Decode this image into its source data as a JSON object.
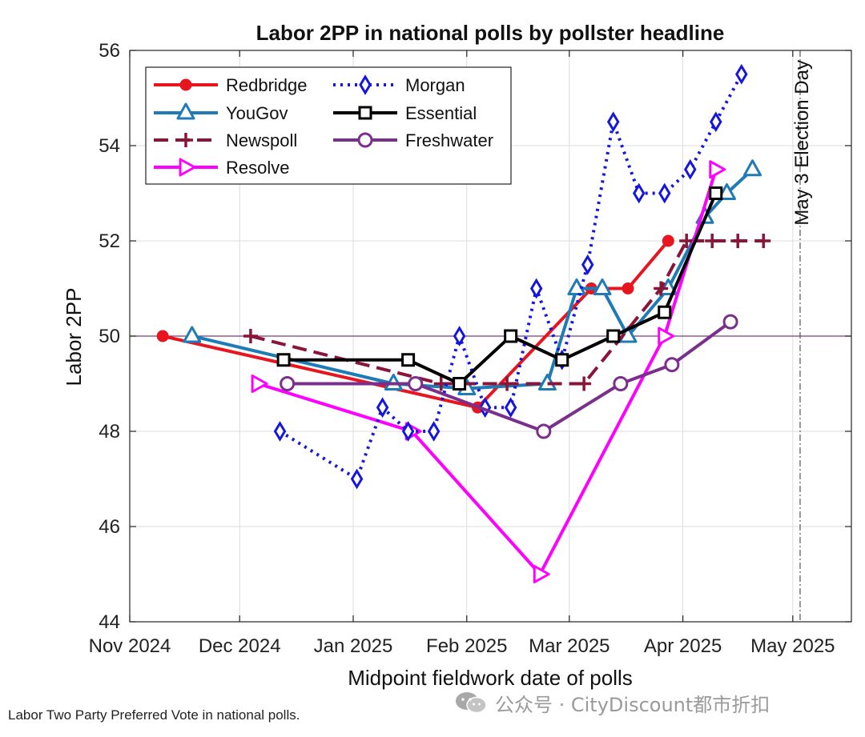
{
  "caption": "Labor Two Party Preferred Vote in national polls.",
  "watermark": {
    "text": "公众号 · CityDiscount都市折扣",
    "icon": "wechat-icon"
  },
  "chart_data": {
    "type": "line",
    "title": "Labor 2PP in national polls by pollster headline",
    "xlabel": "Midpoint fieldwork date of polls",
    "ylabel": "Labor 2PP",
    "x_type": "date",
    "xlim": [
      "2024-11-01",
      "2025-05-17"
    ],
    "ylim": [
      44,
      56
    ],
    "x_ticks": [
      {
        "date": "2024-11-01",
        "label": "Nov 2024"
      },
      {
        "date": "2024-12-01",
        "label": "Dec 2024"
      },
      {
        "date": "2025-01-01",
        "label": "Jan 2025"
      },
      {
        "date": "2025-02-01",
        "label": "Feb 2025"
      },
      {
        "date": "2025-03-01",
        "label": "Mar 2025"
      },
      {
        "date": "2025-04-01",
        "label": "Apr 2025"
      },
      {
        "date": "2025-05-01",
        "label": "May 2025"
      }
    ],
    "y_ticks": [
      44,
      46,
      48,
      50,
      52,
      54,
      56
    ],
    "grid": true,
    "reference_line": {
      "y": 50,
      "color": "#7a3b7a"
    },
    "annotation": {
      "date": "2025-05-03",
      "text": "May 3 Election Day"
    },
    "legend_location": "top-left",
    "series": [
      {
        "name": "Redbridge",
        "color": "#e8141e",
        "style": "solid",
        "marker": "circle",
        "points": [
          [
            "2024-11-10",
            50.0
          ],
          [
            "2025-02-04",
            48.5
          ],
          [
            "2025-03-07",
            51.0
          ],
          [
            "2025-03-17",
            51.0
          ],
          [
            "2025-03-28",
            52.0
          ]
        ]
      },
      {
        "name": "YouGov",
        "color": "#1f7bb6",
        "style": "solid",
        "marker": "triangle-up",
        "points": [
          [
            "2024-11-18",
            50.0
          ],
          [
            "2025-01-12",
            49.0
          ],
          [
            "2025-02-01",
            48.9
          ],
          [
            "2025-02-23",
            49.0
          ],
          [
            "2025-03-03",
            51.0
          ],
          [
            "2025-03-10",
            51.0
          ],
          [
            "2025-03-17",
            50.0
          ],
          [
            "2025-03-28",
            51.0
          ],
          [
            "2025-04-07",
            52.5
          ],
          [
            "2025-04-13",
            53.0
          ],
          [
            "2025-04-20",
            53.5
          ]
        ]
      },
      {
        "name": "Newspoll",
        "color": "#8a1538",
        "style": "dashed",
        "marker": "plus",
        "points": [
          [
            "2024-12-04",
            50.0
          ],
          [
            "2025-01-25",
            49.0
          ],
          [
            "2025-02-12",
            49.0
          ],
          [
            "2025-03-05",
            49.0
          ],
          [
            "2025-03-26",
            51.0
          ],
          [
            "2025-04-02",
            52.0
          ],
          [
            "2025-04-09",
            52.0
          ],
          [
            "2025-04-16",
            52.0
          ],
          [
            "2025-04-23",
            52.0
          ]
        ]
      },
      {
        "name": "Resolve",
        "color": "#ff00ff",
        "style": "solid",
        "marker": "triangle-right",
        "points": [
          [
            "2024-12-06",
            49.0
          ],
          [
            "2025-01-17",
            48.0
          ],
          [
            "2025-02-21",
            45.0
          ],
          [
            "2025-03-27",
            50.0
          ],
          [
            "2025-04-10",
            53.5
          ]
        ]
      },
      {
        "name": "Morgan",
        "color": "#1515e0",
        "style": "dotted",
        "marker": "diamond",
        "points": [
          [
            "2024-12-12",
            48.0
          ],
          [
            "2025-01-02",
            47.0
          ],
          [
            "2025-01-09",
            48.5
          ],
          [
            "2025-01-16",
            48.0
          ],
          [
            "2025-01-23",
            48.0
          ],
          [
            "2025-01-30",
            50.0
          ],
          [
            "2025-02-06",
            48.5
          ],
          [
            "2025-02-13",
            48.5
          ],
          [
            "2025-02-20",
            51.0
          ],
          [
            "2025-02-27",
            49.5
          ],
          [
            "2025-03-06",
            51.5
          ],
          [
            "2025-03-13",
            54.5
          ],
          [
            "2025-03-20",
            53.0
          ],
          [
            "2025-03-27",
            53.0
          ],
          [
            "2025-04-03",
            53.5
          ],
          [
            "2025-04-10",
            54.5
          ],
          [
            "2025-04-17",
            55.5
          ]
        ]
      },
      {
        "name": "Essential",
        "color": "#000000",
        "style": "solid",
        "marker": "square",
        "points": [
          [
            "2024-12-13",
            49.5
          ],
          [
            "2025-01-16",
            49.5
          ],
          [
            "2025-01-30",
            49.0
          ],
          [
            "2025-02-13",
            50.0
          ],
          [
            "2025-02-27",
            49.5
          ],
          [
            "2025-03-13",
            50.0
          ],
          [
            "2025-03-27",
            50.5
          ],
          [
            "2025-04-10",
            53.0
          ]
        ]
      },
      {
        "name": "Freshwater",
        "color": "#7b2f8c",
        "style": "solid",
        "marker": "circle-open",
        "points": [
          [
            "2024-12-14",
            49.0
          ],
          [
            "2025-01-18",
            49.0
          ],
          [
            "2025-02-22",
            48.0
          ],
          [
            "2025-03-15",
            49.0
          ],
          [
            "2025-03-29",
            49.4
          ],
          [
            "2025-04-14",
            50.3
          ]
        ]
      }
    ]
  }
}
